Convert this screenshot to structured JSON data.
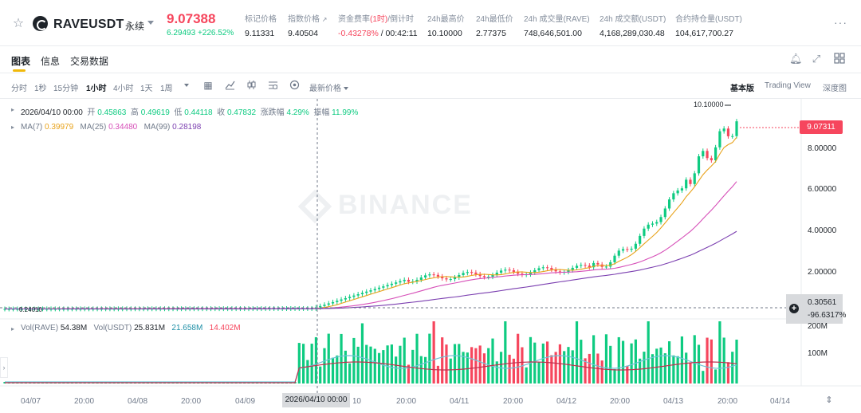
{
  "header": {
    "symbol": "RAVEUSDT",
    "contract_type": "永续",
    "last_price": "9.07388",
    "change_abs": "6.29493",
    "change_pct": "+226.52%",
    "stats": [
      {
        "label": "标记价格",
        "value": "9.11331"
      },
      {
        "label": "指数价格",
        "value": "9.40504"
      },
      {
        "label_main": "资金费率",
        "label_red": "(1时)",
        "label_tail": "/倒计时",
        "value_red": "-0.43278%",
        "value_tail": " / 00:42:11"
      },
      {
        "label": "24h最高价",
        "value": "10.10000"
      },
      {
        "label": "24h最低价",
        "value": "2.77375"
      },
      {
        "label": "24h 成交量(RAVE)",
        "value": "748,646,501.00"
      },
      {
        "label": "24h 成交额(USDT)",
        "value": "4,168,289,030.48"
      },
      {
        "label": "合约持仓量(USDT)",
        "value": "104,617,700.27"
      }
    ]
  },
  "tabs": [
    {
      "label": "图表"
    },
    {
      "label": "信息"
    },
    {
      "label": "交易数据"
    }
  ],
  "toolbar": {
    "intervals": [
      "分时",
      "1秒",
      "15分钟",
      "1小时",
      "4小时",
      "1天",
      "1周"
    ],
    "active_interval": "1小时",
    "price_type": "最新价格",
    "views": [
      "基本版",
      "Trading View",
      "深度图"
    ],
    "active_view": "基本版"
  },
  "ohlc": {
    "date": "2026/04/10 00:00",
    "open_label": "开",
    "open": "0.45863",
    "high_label": "高",
    "high": "0.49619",
    "low_label": "低",
    "low": "0.44118",
    "close_label": "收",
    "close": "0.47832",
    "chg_label": "涨跌幅",
    "chg": "4.29%",
    "amp_label": "振幅",
    "amp": "11.99%"
  },
  "ma": {
    "ma7_label": "MA(7)",
    "ma7": "0.39979",
    "ma25_label": "MA(25)",
    "ma25": "0.34480",
    "ma99_label": "MA(99)",
    "ma99": "0.28198"
  },
  "vol": {
    "rave_label": "Vol(RAVE)",
    "rave": "54.38M",
    "usdt_label": "Vol(USDT)",
    "usdt": "25.831M",
    "ma1": "21.658M",
    "ma2": "14.402M"
  },
  "yaxis": {
    "current_price": "9.07311",
    "ticks": [
      "8.00000",
      "6.00000",
      "4.00000",
      "2.00000"
    ],
    "cross_price": "0.30561",
    "cross_pct": "-96.6317%",
    "vol_ticks": [
      "200M",
      "100M"
    ],
    "high_marker": "10.10000",
    "low_marker": "0.24010"
  },
  "xaxis": {
    "ticks": [
      "04/07",
      "20:00",
      "04/08",
      "20:00",
      "04/09",
      "04/10",
      "20:00",
      "04/11",
      "20:00",
      "04/12",
      "20:00",
      "04/13",
      "20:00",
      "04/14"
    ],
    "cross_time": "2026/04/10 00:00"
  },
  "watermark": "BINANCE",
  "colors": {
    "up": "#0ecb81",
    "down": "#f6465d",
    "accent": "#f0b90b",
    "ma7": "#e8a21a",
    "ma25": "#d64fb8",
    "ma99": "#7b3fb0"
  }
}
